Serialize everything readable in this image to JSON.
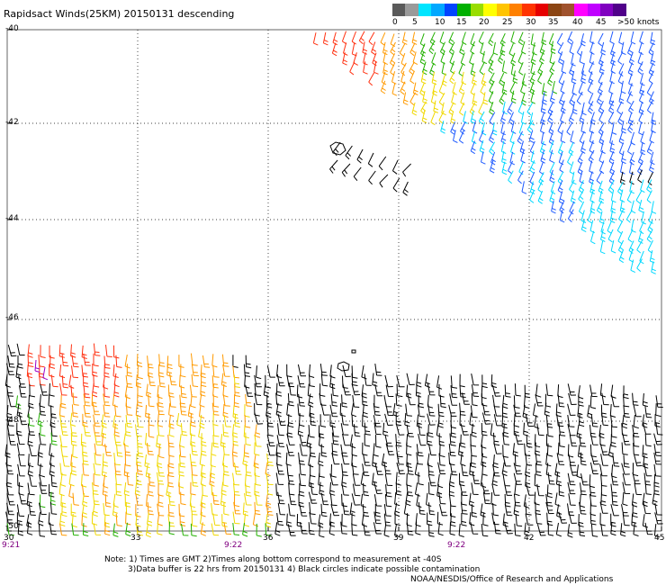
{
  "title": "Rapidsact Winds(25KM) 20150131 descending",
  "legend": {
    "labels": [
      "0",
      "5",
      "10",
      "15",
      "20",
      "25",
      "30",
      "35",
      "40",
      "45",
      ">50 knots"
    ],
    "colors": [
      "#5a5a5a",
      "#9a9a9a",
      "#00e5ff",
      "#00a8ff",
      "#0044ff",
      "#00b000",
      "#99dd00",
      "#ffff00",
      "#ffc400",
      "#ff8000",
      "#ff3300",
      "#e60000",
      "#8b4513",
      "#a0522d",
      "#ff00ff",
      "#c000ff",
      "#8000c0",
      "#50008a"
    ]
  },
  "axes": {
    "lat_labels": [
      "-40",
      "-42",
      "-44",
      "-46",
      "-48",
      "-50"
    ],
    "lon_labels": [
      "30",
      "33",
      "36",
      "39",
      "42",
      "45"
    ]
  },
  "time_labels": [
    "9:21",
    "9:22",
    "9:22"
  ],
  "notes": {
    "line1": "Note: 1) Times are GMT 2)Times along bottom correspond to measurement at -40S",
    "line2": "3)Data buffer is 22 hrs from 20150131 4) Black circles indicate possible contamination",
    "credit": "NOAA/NESDIS/Office of Research and Applications"
  },
  "wind_colors": {
    "black": "#000000",
    "cyan": "#00d8ff",
    "blue": "#1e5aff",
    "green": "#22b000",
    "yellow": "#f0d800",
    "orange": "#ff9a00",
    "red": "#ff3010"
  }
}
